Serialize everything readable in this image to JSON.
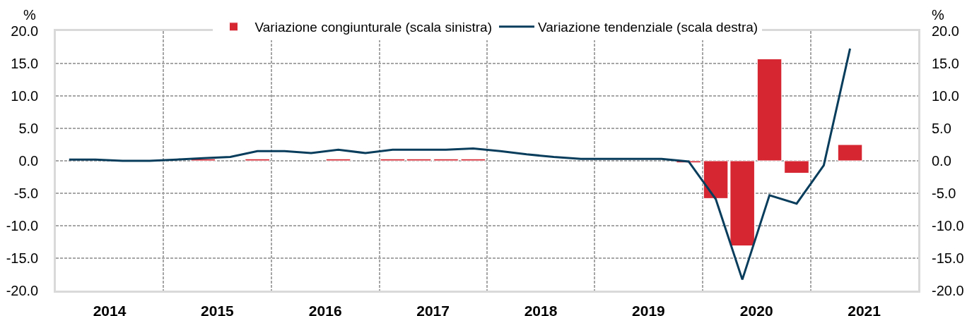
{
  "chart_data": {
    "type": "bar",
    "ylabel": "%",
    "y2label": "%",
    "x": [
      "2014-02-15",
      "2014-05-15",
      "2014-08-15",
      "2014-11-15",
      "2015-02-15",
      "2015-05-15",
      "2015-08-15",
      "2015-11-15",
      "2016-02-15",
      "2016-05-15",
      "2016-08-15",
      "2016-11-15",
      "2017-02-15",
      "2017-05-15",
      "2017-08-15",
      "2017-11-15",
      "2018-02-15",
      "2018-05-15",
      "2018-08-15",
      "2018-11-15",
      "2019-02-15",
      "2019-05-15",
      "2019-08-15",
      "2019-11-15",
      "2020-02-15",
      "2020-05-15",
      "2020-08-15",
      "2020-11-15",
      "2021-02-15",
      "2021-05-15"
    ],
    "xlim": [
      "2014-01-01",
      "2022-01-01"
    ],
    "xticks": [
      {
        "value": "2014-07-02",
        "label": "2014"
      },
      {
        "value": "2015-01-01",
        "label": null
      },
      {
        "value": "2015-07-02",
        "label": "2015"
      },
      {
        "value": "2016-01-01",
        "label": null
      },
      {
        "value": "2016-07-02",
        "label": "2016"
      },
      {
        "value": "2017-01-01",
        "label": null
      },
      {
        "value": "2017-07-02",
        "label": "2017"
      },
      {
        "value": "2018-01-01",
        "label": null
      },
      {
        "value": "2018-07-02",
        "label": "2018"
      },
      {
        "value": "2019-01-01",
        "label": null
      },
      {
        "value": "2019-07-02",
        "label": "2019"
      },
      {
        "value": "2020-01-01",
        "label": null
      },
      {
        "value": "2020-07-02",
        "label": "2020"
      },
      {
        "value": "2021-01-01",
        "label": null
      },
      {
        "value": "2021-07-02",
        "label": "2021"
      }
    ],
    "ylim": [
      -20,
      20
    ],
    "yticks": [
      {
        "value": -20,
        "label": "-20.0"
      },
      {
        "value": -15,
        "label": "-15.0"
      },
      {
        "value": -10,
        "label": "-10.0"
      },
      {
        "value": -5,
        "label": "-5.0"
      },
      {
        "value": 0,
        "label": "0.0"
      },
      {
        "value": 5,
        "label": "5.0"
      },
      {
        "value": 10,
        "label": "10.0"
      },
      {
        "value": 15,
        "label": "15.0"
      },
      {
        "value": 20,
        "label": "20.0"
      }
    ],
    "y2lim": [
      -20,
      20
    ],
    "y2ticks": [
      {
        "value": -20,
        "label": "-20.0"
      },
      {
        "value": -15,
        "label": "-15.0"
      },
      {
        "value": -10,
        "label": "-10.0"
      },
      {
        "value": -5,
        "label": "-5.0"
      },
      {
        "value": 0,
        "label": "0.0"
      },
      {
        "value": 5,
        "label": "5.0"
      },
      {
        "value": 10,
        "label": "10.0"
      },
      {
        "value": 15,
        "label": "15.0"
      },
      {
        "value": 20,
        "label": "20.0"
      }
    ],
    "series": [
      {
        "name": "Variazione congiunturale (scala sinistra)",
        "color": "#d52632",
        "values": [
          null,
          null,
          null,
          null,
          null,
          0.3,
          null,
          0.3,
          null,
          null,
          0.3,
          null,
          0.3,
          0.3,
          0.3,
          0.3,
          null,
          null,
          null,
          null,
          null,
          null,
          null,
          -0.3,
          -5.8,
          -13.1,
          15.7,
          -1.9,
          null,
          2.5
        ]
      },
      {
        "name": "Variazione tendenziale (scala destra)",
        "type": "line",
        "axis": "y2",
        "color": "#093d5c",
        "values": [
          0.2,
          0.2,
          0.0,
          0.0,
          0.2,
          0.4,
          0.6,
          1.5,
          1.5,
          1.2,
          1.7,
          1.2,
          1.7,
          1.7,
          1.7,
          1.9,
          1.5,
          1.0,
          0.6,
          0.3,
          0.3,
          0.3,
          0.3,
          -0.1,
          -5.9,
          -18.3,
          -5.3,
          -6.6,
          -0.7,
          17.3
        ]
      }
    ],
    "grid": true,
    "legend": "top"
  }
}
